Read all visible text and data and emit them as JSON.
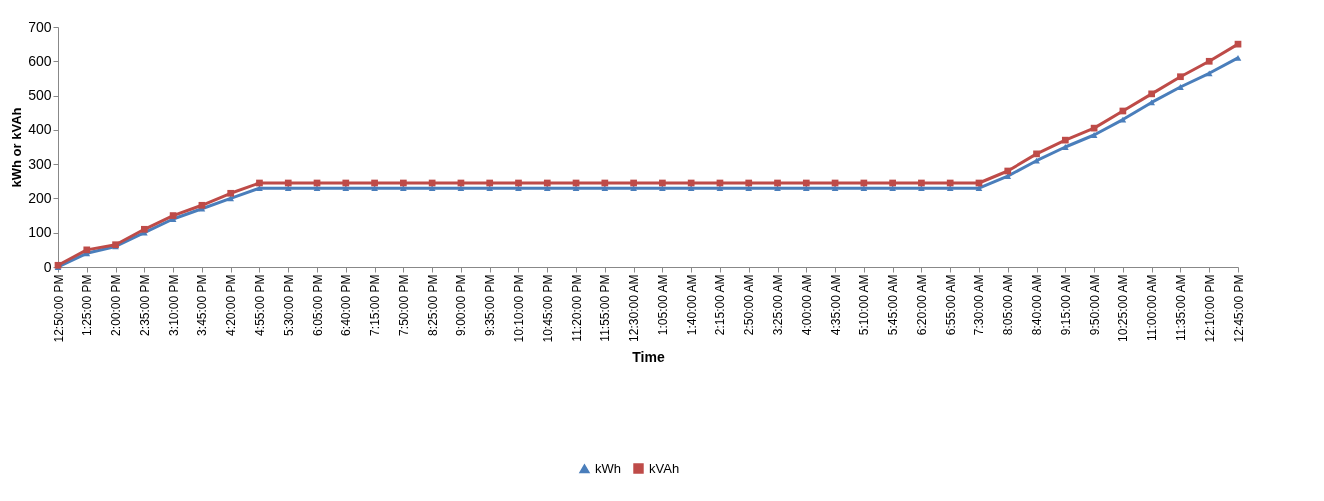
{
  "chart_data": {
    "type": "line",
    "xlabel": "Time",
    "ylabel": "kWh or kVAh",
    "categories": [
      "12:50:00 PM",
      "1:25:00 PM",
      "2:00:00 PM",
      "2:35:00 PM",
      "3:10:00 PM",
      "3:45:00 PM",
      "4:20:00 PM",
      "4:55:00 PM",
      "5:30:00 PM",
      "6:05:00 PM",
      "6:40:00 PM",
      "7:15:00 PM",
      "7:50:00 PM",
      "8:25:00 PM",
      "9:00:00 PM",
      "9:35:00 PM",
      "10:10:00 PM",
      "10:45:00 PM",
      "11:20:00 PM",
      "11:55:00 PM",
      "12:30:00 AM",
      "1:05:00 AM",
      "1:40:00 AM",
      "2:15:00 AM",
      "2:50:00 AM",
      "3:25:00 AM",
      "4:00:00 AM",
      "4:35:00 AM",
      "5:10:00 AM",
      "5:45:00 AM",
      "6:20:00 AM",
      "6:55:00 AM",
      "7:30:00 AM",
      "8:05:00 AM",
      "8:40:00 AM",
      "9:15:00 AM",
      "9:50:00 AM",
      "10:25:00 AM",
      "11:00:00 AM",
      "11:35:00 AM",
      "12:10:00 PM",
      "12:45:00 PM"
    ],
    "ylim": [
      0,
      700
    ],
    "yticks": [
      0,
      100,
      200,
      300,
      400,
      500,
      600,
      700
    ],
    "grid": false,
    "legend": "bottom",
    "series": [
      {
        "name": "kWh",
        "color": "#4a7ebb",
        "marker": "triangle",
        "values": [
          0,
          40,
          60,
          100,
          140,
          170,
          200,
          230,
          230,
          230,
          230,
          230,
          230,
          230,
          230,
          230,
          230,
          230,
          230,
          230,
          230,
          230,
          230,
          230,
          230,
          230,
          230,
          230,
          230,
          230,
          230,
          230,
          230,
          265,
          310,
          350,
          385,
          430,
          480,
          525,
          565,
          610
        ]
      },
      {
        "name": "kVAh",
        "color": "#be4b48",
        "marker": "square",
        "values": [
          5,
          50,
          65,
          110,
          150,
          180,
          215,
          245,
          245,
          245,
          245,
          245,
          245,
          245,
          245,
          245,
          245,
          245,
          245,
          245,
          245,
          245,
          245,
          245,
          245,
          245,
          245,
          245,
          245,
          245,
          245,
          245,
          245,
          280,
          330,
          370,
          405,
          455,
          505,
          555,
          600,
          650
        ]
      }
    ]
  }
}
